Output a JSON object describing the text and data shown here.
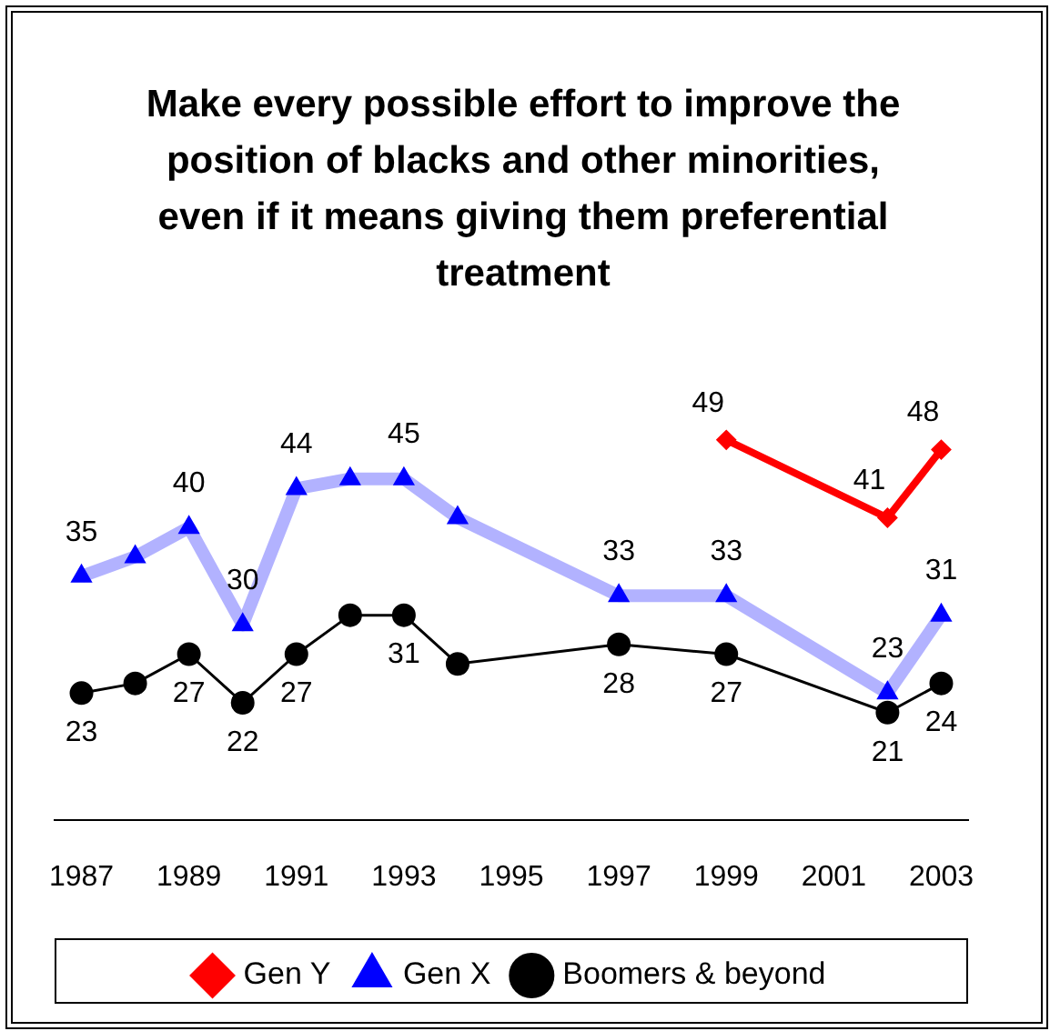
{
  "chart_data": {
    "type": "line",
    "title": "Make every possible effort to improve the position of blacks and other minorities, even if it means giving them preferential treatment",
    "xlim": [
      1986.5,
      2003.5
    ],
    "xticks": [
      1987,
      1989,
      1991,
      1993,
      1995,
      1997,
      1999,
      2001,
      2003
    ],
    "grid": false,
    "legend": "bottom",
    "series": [
      {
        "name": "Gen Y",
        "color": "#ff0000",
        "marker": "diamond",
        "x": [
          1999,
          2002,
          2003
        ],
        "values": [
          49,
          41,
          48
        ],
        "value_labels": [
          "49",
          "41",
          "48"
        ]
      },
      {
        "name": "Gen X",
        "color": "#0000ff",
        "marker": "triangle",
        "x": [
          1987,
          1988,
          1989,
          1990,
          1991,
          1992,
          1993,
          1994,
          1997,
          1999,
          2002,
          2003
        ],
        "values": [
          35,
          37,
          40,
          30,
          44,
          45,
          45,
          41,
          33,
          33,
          23,
          31
        ],
        "value_labels": [
          "35",
          null,
          "40",
          "30",
          "44",
          null,
          "45",
          null,
          "33",
          "33",
          "23",
          "31"
        ]
      },
      {
        "name": "Boomers & beyond",
        "color": "#000000",
        "marker": "circle",
        "x": [
          1987,
          1988,
          1989,
          1990,
          1991,
          1992,
          1993,
          1994,
          1997,
          1999,
          2002,
          2003
        ],
        "values": [
          23,
          24,
          27,
          22,
          27,
          31,
          31,
          26,
          28,
          27,
          21,
          24
        ],
        "value_labels": [
          "23",
          null,
          "27",
          "22",
          "27",
          null,
          "31",
          null,
          "28",
          "27",
          "21",
          "24"
        ]
      }
    ]
  }
}
